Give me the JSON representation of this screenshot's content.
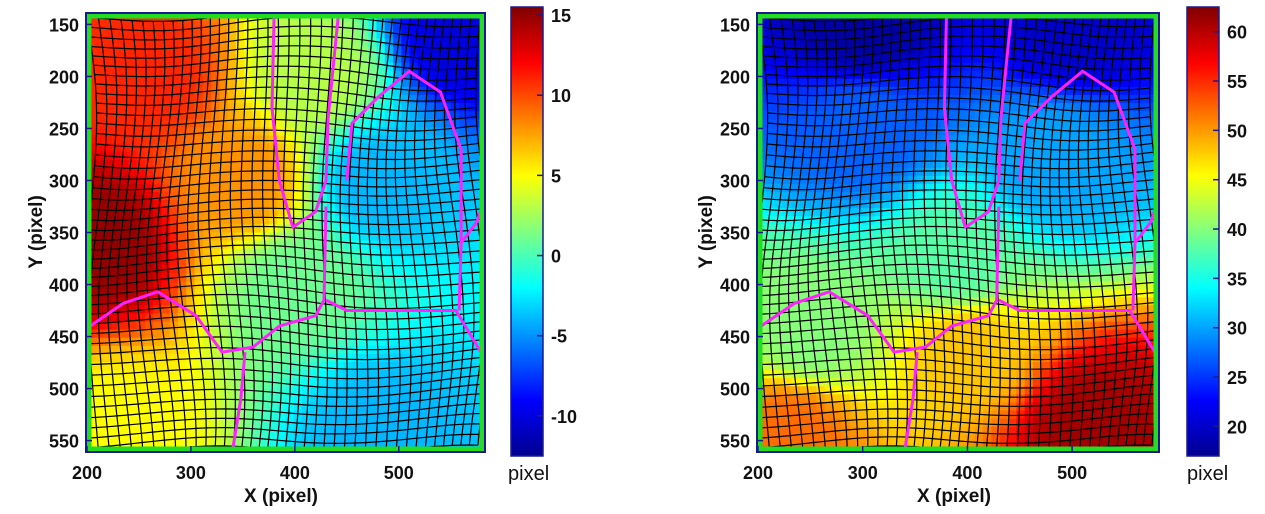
{
  "colors": {
    "frame": "#1a1a8c",
    "boundary": "#22dd22",
    "mesh": "#000000",
    "partition": "#ff22ff",
    "colormap": [
      "#00008f",
      "#0000ff",
      "#0080ff",
      "#00ffff",
      "#80ff80",
      "#ffff00",
      "#ff8000",
      "#ff0000",
      "#800000"
    ]
  },
  "chart_data": [
    {
      "type": "heatmap",
      "colormap": "jet",
      "xlabel": "X (pixel)",
      "ylabel": "Y (pixel)",
      "xlim": [
        200,
        582
      ],
      "ylim": [
        140,
        560
      ],
      "y_inverted": true,
      "xticks": [
        "200",
        "300",
        "400",
        "500"
      ],
      "yticks": [
        "150",
        "200",
        "250",
        "300",
        "350",
        "400",
        "450",
        "500",
        "550"
      ],
      "colorbar": {
        "range": [
          -12.5,
          15.5
        ],
        "ticks": [
          "15",
          "10",
          "5",
          "0",
          "-5",
          "-10"
        ],
        "unit": "pixel"
      },
      "field_samples": [
        {
          "x": 210,
          "y": 360,
          "value": 15
        },
        {
          "x": 260,
          "y": 200,
          "value": 11
        },
        {
          "x": 350,
          "y": 300,
          "value": 8
        },
        {
          "x": 420,
          "y": 200,
          "value": 3
        },
        {
          "x": 400,
          "y": 400,
          "value": 1
        },
        {
          "x": 480,
          "y": 300,
          "value": -4
        },
        {
          "x": 560,
          "y": 160,
          "value": -10
        },
        {
          "x": 230,
          "y": 540,
          "value": 5
        },
        {
          "x": 480,
          "y": 540,
          "value": -4
        }
      ]
    },
    {
      "type": "heatmap",
      "colormap": "jet",
      "xlabel": "X (pixel)",
      "ylabel": "Y (pixel)",
      "xlim": [
        200,
        582
      ],
      "ylim": [
        140,
        560
      ],
      "y_inverted": true,
      "xticks": [
        "200",
        "300",
        "400",
        "500"
      ],
      "yticks": [
        "150",
        "200",
        "250",
        "300",
        "350",
        "400",
        "450",
        "500",
        "550"
      ],
      "colorbar": {
        "range": [
          17,
          62.5
        ],
        "ticks": [
          "60",
          "55",
          "50",
          "45",
          "40",
          "35",
          "30",
          "25",
          "20"
        ],
        "unit": "pixel"
      },
      "field_samples": [
        {
          "x": 300,
          "y": 150,
          "value": 18
        },
        {
          "x": 500,
          "y": 150,
          "value": 20
        },
        {
          "x": 300,
          "y": 250,
          "value": 27
        },
        {
          "x": 480,
          "y": 280,
          "value": 30
        },
        {
          "x": 390,
          "y": 380,
          "value": 38
        },
        {
          "x": 250,
          "y": 450,
          "value": 40
        },
        {
          "x": 400,
          "y": 460,
          "value": 48
        },
        {
          "x": 230,
          "y": 540,
          "value": 52
        },
        {
          "x": 520,
          "y": 540,
          "value": 61
        }
      ]
    }
  ]
}
